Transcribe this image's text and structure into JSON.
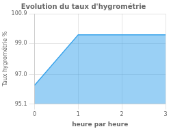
{
  "chart_data": {
    "type": "area",
    "title": "Evolution du taux d'hygrométrie",
    "xlabel": "heure par heure",
    "ylabel": "Taux hygrométrie %",
    "x": [
      0,
      1,
      3
    ],
    "values": [
      96.3,
      99.55,
      99.55
    ],
    "xlim": [
      0,
      3
    ],
    "xticks": [
      0,
      1,
      2,
      3
    ],
    "ylim": [
      95.1,
      100.9
    ],
    "yticks": [
      {
        "value": 95.1,
        "label": "95.1"
      },
      {
        "value": 97.0,
        "label": "97.0"
      },
      {
        "value": 99.0,
        "label": "99.0"
      },
      {
        "value": 100.9,
        "label": "100.9"
      }
    ],
    "grid": true
  }
}
